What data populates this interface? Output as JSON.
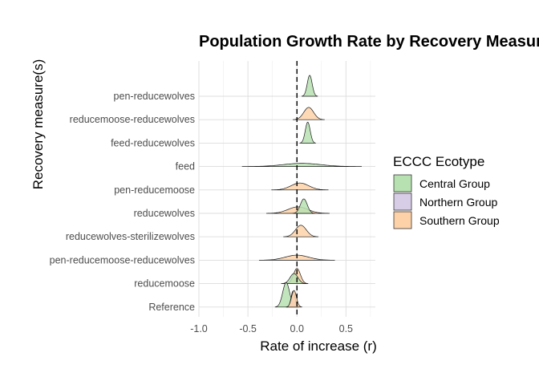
{
  "chart_data": {
    "type": "ridgeline",
    "title": "Population Growth Rate by Recovery Measure",
    "xlabel": "Rate of increase (r)",
    "ylabel": "Recovery measure(s)",
    "xlim": [
      -1.0,
      0.8
    ],
    "xticks": [
      -1.0,
      -0.5,
      0.0,
      0.5
    ],
    "xtick_labels": [
      "-1.0",
      "-0.5",
      "0.0",
      "0.5"
    ],
    "reference_line_x": 0,
    "grid": true,
    "legend_position": "right",
    "legend": {
      "title": "ECCC Ecotype",
      "entries": [
        {
          "name": "Central Group",
          "color": "#b7e1b1"
        },
        {
          "name": "Northern Group",
          "color": "#d8cde6"
        },
        {
          "name": "Southern Group",
          "color": "#fdd2a9"
        }
      ]
    },
    "categories": [
      "pen-reducewolves",
      "reducemoose-reducewolves",
      "feed-reducewolves",
      "feed",
      "pen-reducemoose",
      "reducewolves",
      "reducewolves-sterilizewolves",
      "pen-reducemoose-reducewolves",
      "reducemoose",
      "Reference"
    ],
    "densities": [
      {
        "category": "pen-reducewolves",
        "group": "Central Group",
        "mean": 0.13,
        "sd": 0.025,
        "height": 1.45
      },
      {
        "category": "reducemoose-reducewolves",
        "group": "Southern Group",
        "mean": 0.12,
        "sd": 0.05,
        "height": 0.85
      },
      {
        "category": "feed-reducewolves",
        "group": "Central Group",
        "mean": 0.11,
        "sd": 0.025,
        "height": 1.45
      },
      {
        "category": "feed",
        "group": "Central Group",
        "mean": 0.05,
        "sd": 0.19,
        "height": 0.22
      },
      {
        "category": "pen-reducemoose",
        "group": "Southern Group",
        "mean": 0.03,
        "sd": 0.09,
        "height": 0.48
      },
      {
        "category": "reducewolves",
        "group": "Southern Group",
        "mean": 0.01,
        "sd": 0.1,
        "height": 0.45
      },
      {
        "category": "reducewolves",
        "group": "Central Group",
        "mean": 0.07,
        "sd": 0.035,
        "height": 1.0
      },
      {
        "category": "reducewolves-sterilizewolves",
        "group": "Southern Group",
        "mean": 0.04,
        "sd": 0.055,
        "height": 0.8
      },
      {
        "category": "pen-reducemoose-reducewolves",
        "group": "Southern Group",
        "mean": 0.0,
        "sd": 0.12,
        "height": 0.35
      },
      {
        "category": "reducemoose",
        "group": "Southern Group",
        "mean": 0.0,
        "sd": 0.035,
        "height": 1.05
      },
      {
        "category": "reducemoose",
        "group": "Central Group",
        "mean": -0.03,
        "sd": 0.04,
        "height": 0.7
      },
      {
        "category": "Reference",
        "group": "Central Group",
        "mean": -0.11,
        "sd": 0.035,
        "height": 1.7
      },
      {
        "category": "Reference",
        "group": "Northern Group",
        "mean": -0.04,
        "sd": 0.02,
        "height": 1.1
      },
      {
        "category": "Reference",
        "group": "Southern Group",
        "mean": -0.03,
        "sd": 0.025,
        "height": 1.15
      }
    ]
  }
}
